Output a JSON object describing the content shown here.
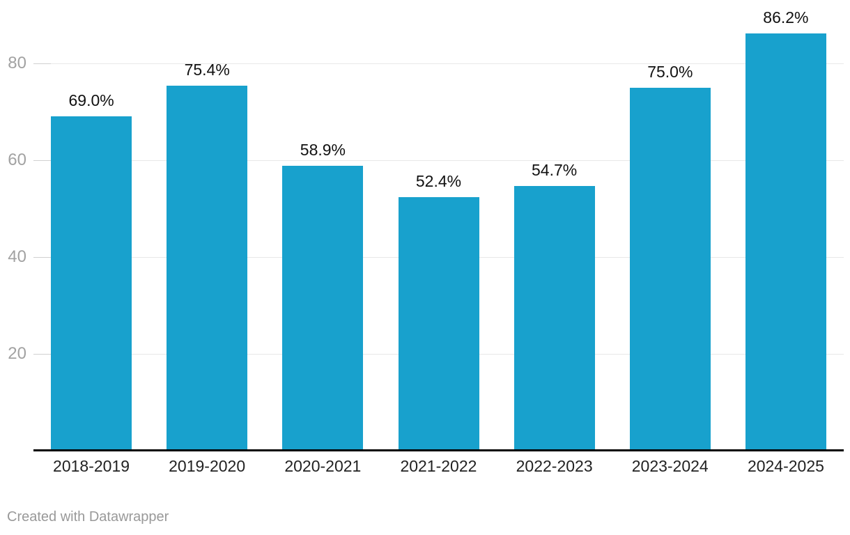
{
  "chart_data": {
    "type": "bar",
    "title": "",
    "xlabel": "",
    "ylabel": "",
    "categories": [
      "2018-2019",
      "2019-2020",
      "2020-2021",
      "2021-2022",
      "2022-2023",
      "2023-2024",
      "2024-2025"
    ],
    "values": [
      69.0,
      75.4,
      58.9,
      52.4,
      54.7,
      75.0,
      86.2
    ],
    "value_labels": [
      "69.0%",
      "75.4%",
      "58.9%",
      "52.4%",
      "54.7%",
      "75.0%",
      "86.2%"
    ],
    "ylim": [
      0,
      93
    ],
    "yticks": [
      20,
      40,
      60,
      80
    ],
    "grid": "horizontal",
    "legend": "none"
  },
  "footer": {
    "attribution": "Created with Datawrapper"
  },
  "colors": {
    "bar": "#18a1cd",
    "gridline": "#e8e8e8",
    "tick_segment": "#d0d0d0",
    "axis_line": "#000000",
    "y_label": "#a2a2a2",
    "x_label": "#222222",
    "data_label": "#111111",
    "footer_text": "#999999",
    "background": "#ffffff"
  }
}
